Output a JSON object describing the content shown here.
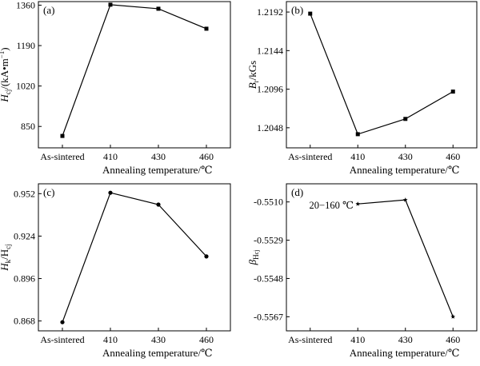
{
  "chart_data": [
    {
      "type": "line",
      "panel": "(a)",
      "categories": [
        "As-sintered",
        "410",
        "430",
        "460"
      ],
      "values": [
        810,
        1362,
        1345,
        1261
      ],
      "ylim": [
        760,
        1375
      ],
      "yticks": [
        "850",
        "1020",
        "1190",
        "1360"
      ],
      "ylabel_main": "H",
      "ylabel_sub": "cj",
      "ylabel_rest": "/(kA•m",
      "ylabel_sup": "−1",
      "ylabel_close": ")",
      "xlabel": "Annealing temperature/℃",
      "marker": "square"
    },
    {
      "type": "line",
      "panel": "(b)",
      "categories": [
        "As-sintered",
        "410",
        "430",
        "460"
      ],
      "values": [
        1.219,
        1.204,
        1.2059,
        1.2093
      ],
      "ylim": [
        1.2023,
        1.2205
      ],
      "yticks": [
        "1.2048",
        "1.2096",
        "1.2144",
        "1.2192"
      ],
      "ylabel_main": "B",
      "ylabel_sub": "r",
      "ylabel_rest": "/kGs",
      "xlabel": "Annealing temperature/℃",
      "marker": "square"
    },
    {
      "type": "line",
      "panel": "(c)",
      "categories": [
        "As-sintered",
        "410",
        "430",
        "460"
      ],
      "values": [
        0.8672,
        0.9526,
        0.9448,
        0.9106
      ],
      "ylim": [
        0.8615,
        0.9585
      ],
      "yticks": [
        "0.868",
        "0.896",
        "0.924",
        "0.952"
      ],
      "ylabel_main": "H",
      "ylabel_sub": "k",
      "ylabel_rest": "/H",
      "ylabel_sub2": "cj",
      "xlabel": "Annealing temperature/℃",
      "marker": "circle"
    },
    {
      "type": "line",
      "panel": "(d)",
      "categories": [
        "As-sintered",
        "410",
        "430",
        "460"
      ],
      "values": [
        null,
        -0.5511,
        -0.5509,
        -0.5567
      ],
      "ylim": [
        -0.5574,
        -0.5501
      ],
      "yticks": [
        "-0.5510",
        "-0.5529",
        "-0.5548",
        "-0.5567"
      ],
      "ylabel_main": "β",
      "ylabel_sub": "H",
      "ylabel_sub2": "cj",
      "annotation": "20−160 ℃",
      "xlabel": "Annealing temperature/℃",
      "marker": "star"
    }
  ]
}
